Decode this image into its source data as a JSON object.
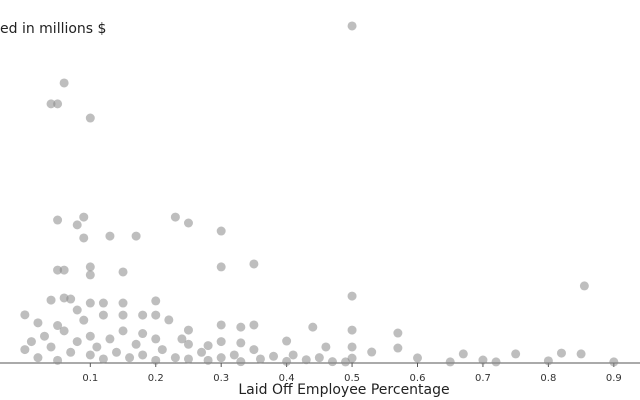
{
  "chart_data": {
    "type": "scatter",
    "y_label": "ed in millions $",
    "x_label": "Laid Off Employee Percentage",
    "color": "#888888",
    "xlim": [
      -0.038,
      0.94
    ],
    "ylim": [
      0,
      130000
    ],
    "xticks": [
      0.1,
      0.2,
      0.3,
      0.4,
      0.5,
      0.6,
      0.7,
      0.8,
      0.9
    ],
    "x": [
      0.5,
      0.06,
      0.04,
      0.05,
      0.1,
      0.05,
      0.09,
      0.08,
      0.09,
      0.13,
      0.17,
      0.23,
      0.25,
      0.3,
      0.3,
      0.35,
      0.05,
      0.06,
      0.1,
      0.1,
      0.15,
      0.855,
      0.5,
      0.04,
      0.06,
      0.07,
      0.1,
      0.12,
      0.15,
      0.2,
      0.08,
      0.12,
      0.15,
      0.18,
      0.2,
      0.22,
      0.25,
      0.3,
      0.33,
      0.35,
      0.44,
      0.5,
      0.57,
      0.4,
      0.46,
      0.53,
      0.57,
      0.6,
      0.65,
      0.67,
      0.7,
      0.72,
      0.75,
      0.8,
      0.82,
      0.85,
      0.9,
      0.0,
      0.01,
      0.02,
      0.03,
      0.04,
      0.05,
      0.06,
      0.07,
      0.08,
      0.1,
      0.1,
      0.11,
      0.12,
      0.13,
      0.14,
      0.15,
      0.16,
      0.17,
      0.18,
      0.2,
      0.2,
      0.21,
      0.23,
      0.25,
      0.25,
      0.27,
      0.28,
      0.3,
      0.3,
      0.32,
      0.33,
      0.35,
      0.36,
      0.38,
      0.4,
      0.41,
      0.43,
      0.45,
      0.47,
      0.5,
      0.5,
      0.49,
      0.02,
      0.0,
      0.05,
      0.09,
      0.18,
      0.24,
      0.28,
      0.33
    ],
    "y": [
      125900,
      104600,
      96800,
      96800,
      91500,
      53400,
      54500,
      51600,
      46700,
      47400,
      47400,
      54500,
      52300,
      49300,
      35900,
      37000,
      34700,
      34700,
      35900,
      32900,
      34000,
      28800,
      25000,
      23500,
      24300,
      23900,
      22400,
      22400,
      22400,
      23200,
      19800,
      17900,
      17900,
      17900,
      17900,
      16100,
      12300,
      14200,
      13400,
      14200,
      13400,
      12300,
      11200,
      8200,
      6000,
      4100,
      5600,
      1900,
      400,
      3400,
      1100,
      400,
      3400,
      800,
      3700,
      3400,
      400,
      5000,
      8000,
      2000,
      10000,
      6000,
      1000,
      12000,
      4000,
      8000,
      3000,
      10000,
      6000,
      1500,
      9000,
      4000,
      12000,
      2000,
      7000,
      3000,
      9000,
      1000,
      5000,
      2000,
      7000,
      1500,
      4000,
      1000,
      8000,
      2000,
      3000,
      500,
      5000,
      1500,
      2500,
      600,
      3000,
      1200,
      2000,
      500,
      1800,
      6000,
      400,
      15000,
      18000,
      14000,
      16000,
      11000,
      9000,
      6500,
      7500
    ]
  }
}
